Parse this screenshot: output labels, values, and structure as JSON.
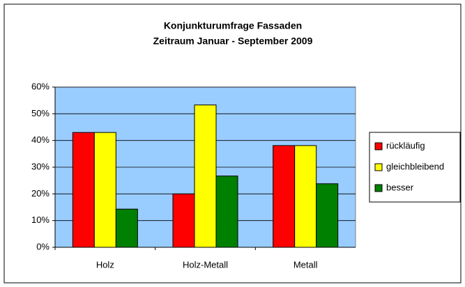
{
  "chart_data": {
    "type": "bar",
    "title": [
      "Konjunkturumfrage Fassaden",
      "Zeitraum Januar - September 2009"
    ],
    "categories": [
      "Holz",
      "Holz-Metall",
      "Metall"
    ],
    "series": [
      {
        "name": "rückläufig",
        "color": "#ff0000",
        "values": [
          43,
          20,
          38.1
        ]
      },
      {
        "name": "gleichbleibend",
        "color": "#ffff00",
        "values": [
          43,
          53.3,
          38.1
        ]
      },
      {
        "name": "besser",
        "color": "#008000",
        "values": [
          14.3,
          26.7,
          23.8
        ]
      }
    ],
    "ylim": [
      0,
      60
    ],
    "yticks": [
      {
        "value": 0,
        "label": "0%"
      },
      {
        "value": 10,
        "label": "10%"
      },
      {
        "value": 20,
        "label": "20%"
      },
      {
        "value": 30,
        "label": "30%"
      },
      {
        "value": 40,
        "label": "40%"
      },
      {
        "value": 50,
        "label": "50%"
      },
      {
        "value": 60,
        "label": "60%"
      }
    ],
    "grid": true,
    "legend": "right",
    "plot_background": "#99ccff"
  }
}
